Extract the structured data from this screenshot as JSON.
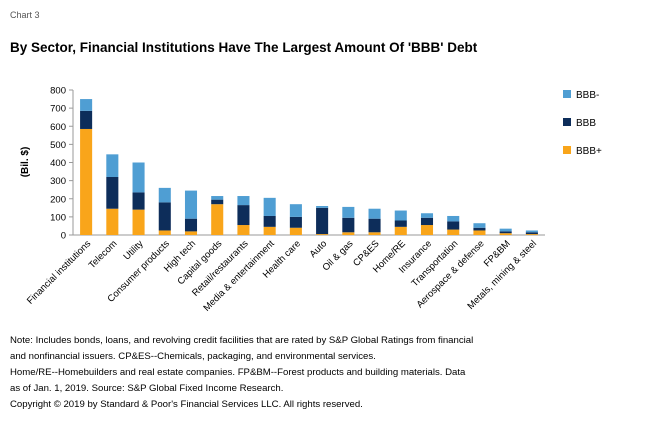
{
  "chart_label": "Chart 3",
  "title": "By Sector, Financial Institutions Have The Largest Amount Of 'BBB' Debt",
  "notes": [
    "Note: Includes bonds, loans, and revolving credit facilities that are rated by S&P Global Ratings from financial",
    "and nonfinancial issuers. CP&ES--Chemicals, packaging, and environmental services.",
    "Home/RE--Homebuilders and real estate companies. FP&BM--Forest products and building materials. Data",
    "as of Jan. 1, 2019. Source: S&P Global Fixed Income Research.",
    "Copyright © 2019 by Standard & Poor's Financial Services LLC. All rights reserved."
  ],
  "chart_data": {
    "type": "bar",
    "stacked": true,
    "title": "By Sector, Financial Institutions Have The Largest Amount Of 'BBB' Debt",
    "xlabel": "",
    "ylabel": "(Bil. $)",
    "ylim": [
      0,
      800
    ],
    "yticks": [
      0,
      100,
      200,
      300,
      400,
      500,
      600,
      700,
      800
    ],
    "legend_position": "right",
    "categories": [
      "Financial institutions",
      "Telecom",
      "Utility",
      "Consumer products",
      "High tech",
      "Capital goods",
      "Retail/restaurants",
      "Media & entertainment",
      "Health care",
      "Auto",
      "Oil & gas",
      "CP&ES",
      "Home/RE",
      "Insurance",
      "Transportation",
      "Aerospace & defense",
      "FP&BM",
      "Metals, mining & steel"
    ],
    "series": [
      {
        "name": "BBB+",
        "color": "#f9a51a",
        "values": [
          585,
          145,
          140,
          25,
          20,
          170,
          55,
          45,
          40,
          5,
          15,
          15,
          45,
          55,
          30,
          25,
          10,
          5
        ]
      },
      {
        "name": "BBB",
        "color": "#0d2d5a",
        "values": [
          100,
          175,
          95,
          155,
          70,
          25,
          110,
          60,
          60,
          145,
          80,
          75,
          35,
          40,
          45,
          15,
          10,
          10
        ]
      },
      {
        "name": "BBB-",
        "color": "#4f9ed3",
        "values": [
          65,
          125,
          165,
          80,
          155,
          20,
          50,
          100,
          70,
          10,
          60,
          55,
          55,
          25,
          30,
          25,
          15,
          10
        ]
      }
    ]
  }
}
